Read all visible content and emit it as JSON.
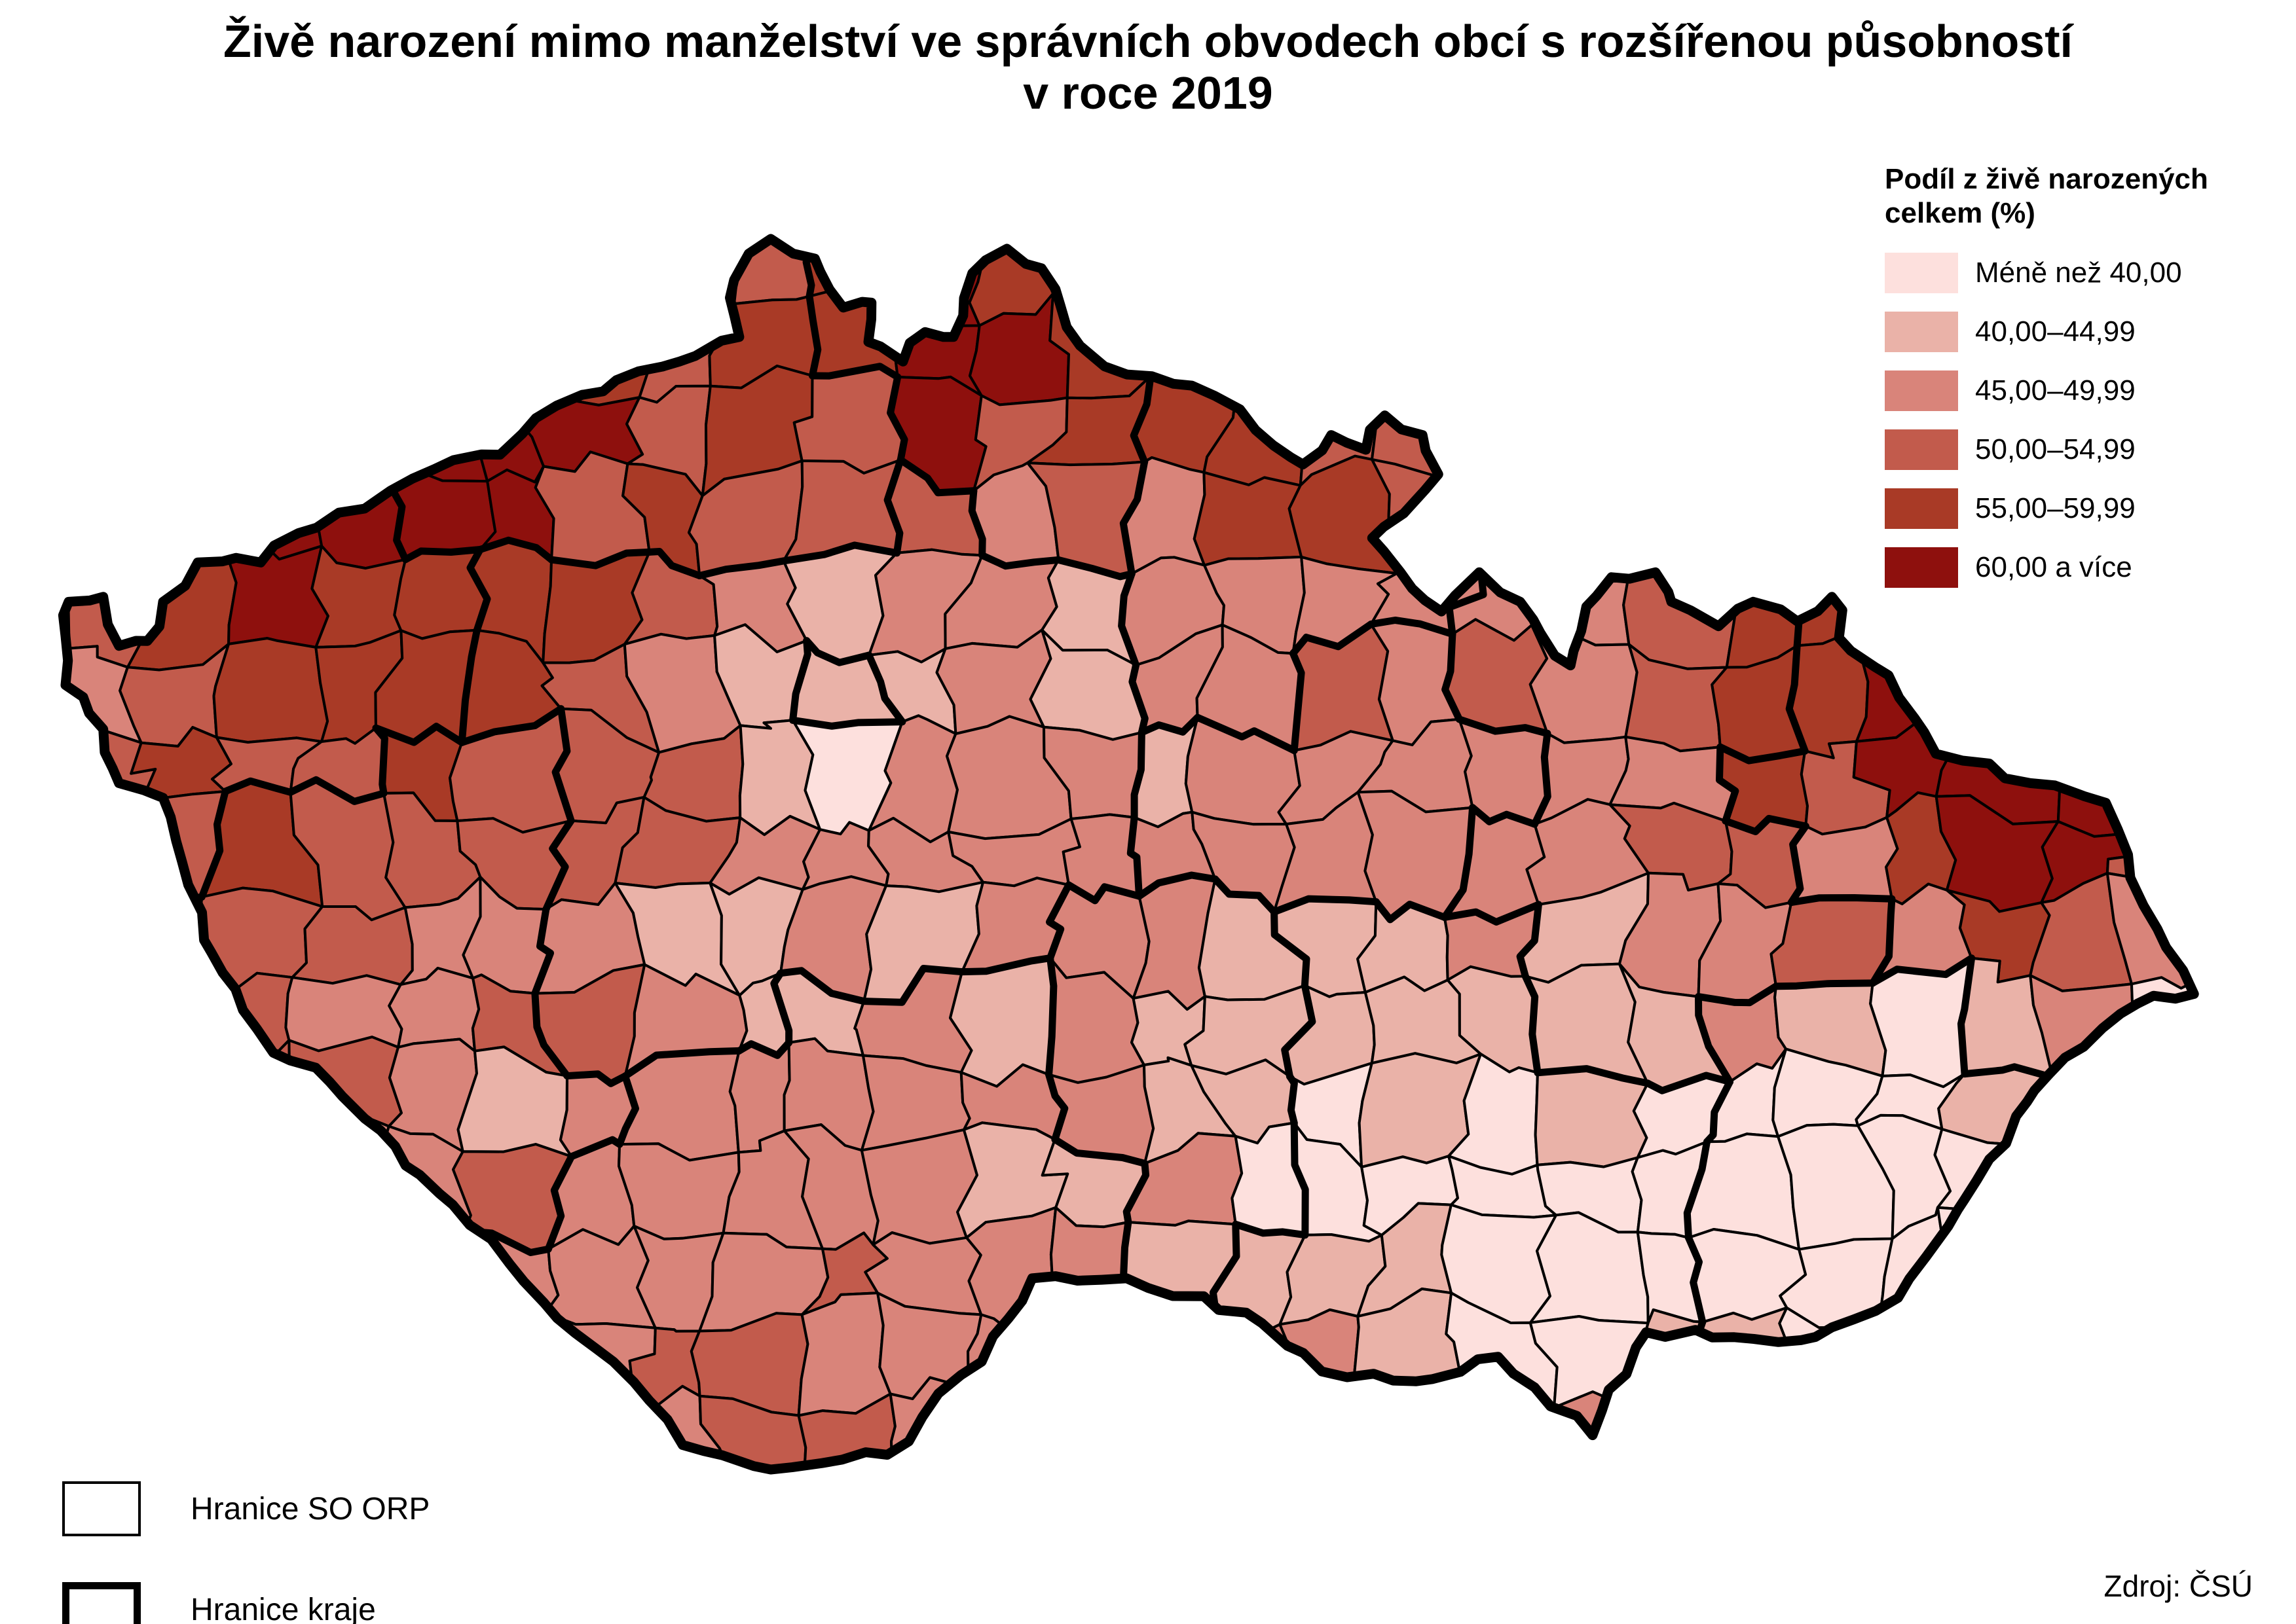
{
  "title": {
    "line1": "Živě narození mimo manželství ve správních obvodech obcí s rozšířenou působností",
    "line2": "v roce 2019"
  },
  "legend": {
    "title_line1": "Podíl z živě narozených",
    "title_line2": "celkem (%)",
    "classes": [
      {
        "label": "Méně než 40,00",
        "color": "#fde0dd"
      },
      {
        "label": "40,00–44,99",
        "color": "#eab2a8"
      },
      {
        "label": "45,00–49,99",
        "color": "#d9847a"
      },
      {
        "label": "50,00–54,99",
        "color": "#c25b4c"
      },
      {
        "label": "55,00–59,99",
        "color": "#a93a26"
      },
      {
        "label": "60,00 a více",
        "color": "#8e100d"
      }
    ]
  },
  "boundary_legend": {
    "orp_label": "Hranice SO ORP",
    "kraj_label": "Hranice kraje"
  },
  "source": "Zdroj: ČSÚ",
  "map": {
    "outline_color": "#000000",
    "orp_border_color": "#000000",
    "background": "#ffffff"
  }
}
